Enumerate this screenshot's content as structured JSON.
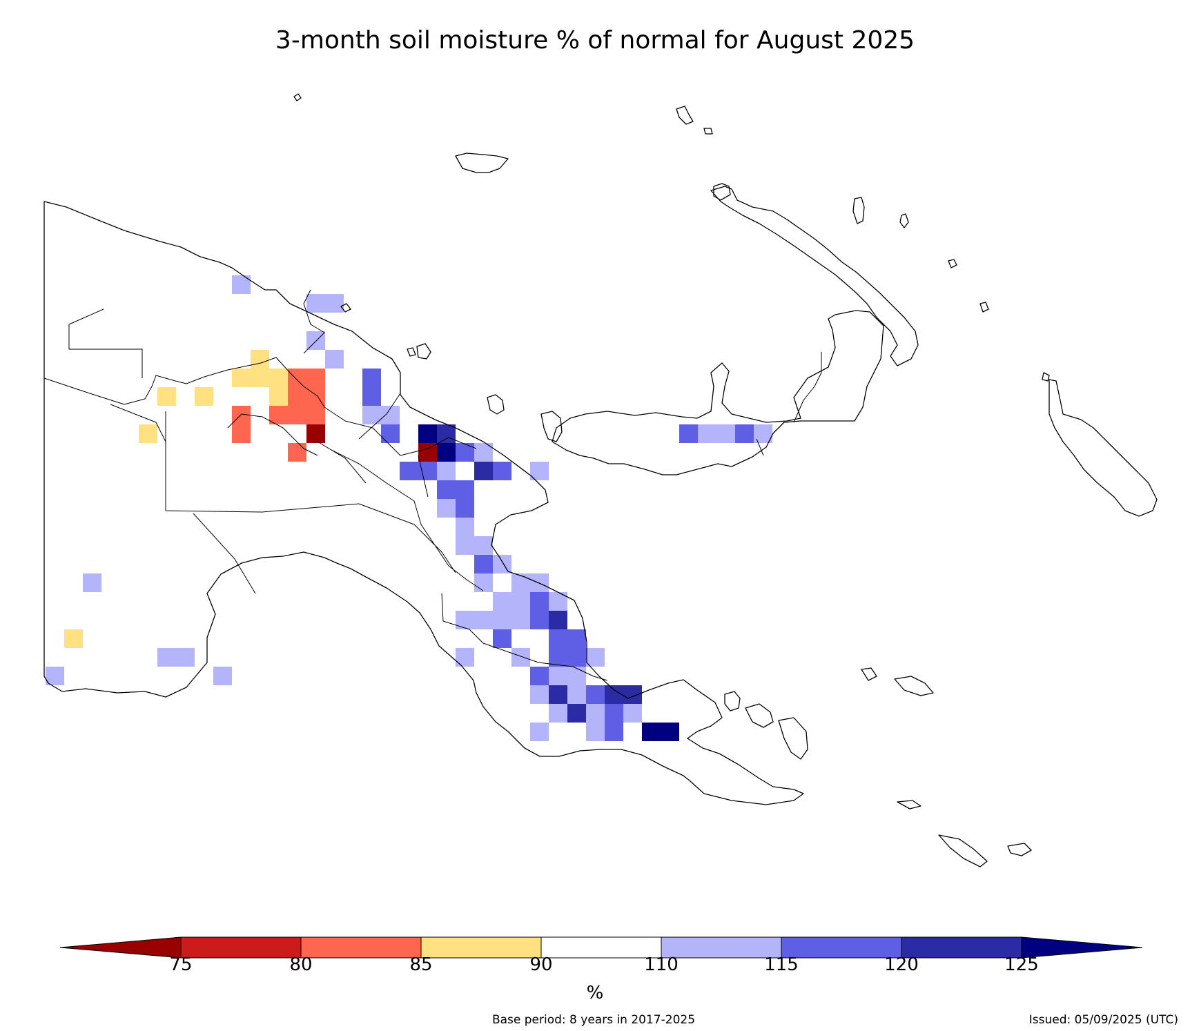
{
  "title": "3-month soil moisture % of normal for August 2025",
  "colorbar": {
    "unit_label": "%",
    "tick_labels": [
      "75",
      "80",
      "85",
      "90",
      "110",
      "115",
      "120",
      "125"
    ],
    "bins": [
      {
        "range": "<75",
        "color": "#990000"
      },
      {
        "range": "75-80",
        "color": "#cc1b1b"
      },
      {
        "range": "80-85",
        "color": "#ff6650"
      },
      {
        "range": "85-90",
        "color": "#ffe182"
      },
      {
        "range": "90-110",
        "color": "#ffffff"
      },
      {
        "range": "110-115",
        "color": "#b4b4fa"
      },
      {
        "range": "115-120",
        "color": "#5f5fe6"
      },
      {
        "range": "120-125",
        "color": "#2b2ba6"
      },
      {
        "range": ">125",
        "color": "#000080"
      }
    ]
  },
  "footer": {
    "base_period": "Base period: 8 years in 2017-2025",
    "issued": "Issued: 05/09/2025 (UTC)"
  },
  "map": {
    "region_features": [
      "western-mainland",
      "northern-coast",
      "southern-peninsula",
      "new-britain",
      "new-ireland",
      "bougainville",
      "manus",
      "louisiade-archipelago"
    ],
    "cell_categories": {
      "dry_extreme": "<75",
      "dry_strong": "80-85",
      "dry_mild": "85-90",
      "wet_mild": "110-115",
      "wet_moderate": "115-120",
      "wet_strong": "120-125",
      "wet_extreme": ">125"
    }
  }
}
